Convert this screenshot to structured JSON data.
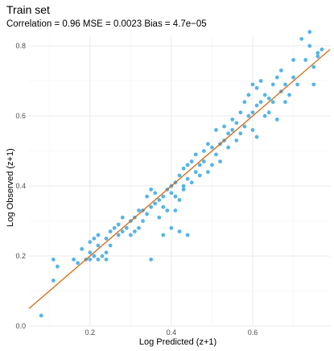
{
  "chart_data": {
    "type": "scatter",
    "title": "Train set",
    "subtitle": "Correlation =  0.96   MSE =   0.0023   Bias =   4.7e−05",
    "xlabel": "Log Predicted (z+1)",
    "ylabel": "Log Observed (z+1)",
    "xlim": [
      0.05,
      0.79
    ],
    "ylim": [
      0.0,
      0.83
    ],
    "x_ticks": [
      0.2,
      0.4,
      0.6
    ],
    "x_tick_labels": [
      "0.2",
      "0.4",
      "0.6"
    ],
    "y_ticks": [
      0.0,
      0.2,
      0.4,
      0.6,
      0.8
    ],
    "y_tick_labels": [
      "0.0",
      "0.2",
      "0.4",
      "0.6",
      "0.8"
    ],
    "grid": true,
    "point_color": "#56b4e9",
    "line_color": "#d55e00",
    "fit_line": {
      "slope": 1.0,
      "intercept": 0.0
    },
    "points": [
      [
        0.08,
        0.03
      ],
      [
        0.11,
        0.13
      ],
      [
        0.11,
        0.19
      ],
      [
        0.12,
        0.17
      ],
      [
        0.16,
        0.19
      ],
      [
        0.17,
        0.18
      ],
      [
        0.18,
        0.22
      ],
      [
        0.19,
        0.19
      ],
      [
        0.2,
        0.21
      ],
      [
        0.2,
        0.19
      ],
      [
        0.2,
        0.24
      ],
      [
        0.21,
        0.25
      ],
      [
        0.21,
        0.2
      ],
      [
        0.22,
        0.26
      ],
      [
        0.22,
        0.23
      ],
      [
        0.22,
        0.19
      ],
      [
        0.23,
        0.2
      ],
      [
        0.24,
        0.19
      ],
      [
        0.24,
        0.25
      ],
      [
        0.24,
        0.21
      ],
      [
        0.25,
        0.23
      ],
      [
        0.25,
        0.27
      ],
      [
        0.26,
        0.28
      ],
      [
        0.27,
        0.26
      ],
      [
        0.27,
        0.29
      ],
      [
        0.28,
        0.27
      ],
      [
        0.28,
        0.31
      ],
      [
        0.29,
        0.28
      ],
      [
        0.3,
        0.3
      ],
      [
        0.3,
        0.26
      ],
      [
        0.31,
        0.27
      ],
      [
        0.31,
        0.31
      ],
      [
        0.32,
        0.33
      ],
      [
        0.32,
        0.28
      ],
      [
        0.33,
        0.3
      ],
      [
        0.33,
        0.33
      ],
      [
        0.34,
        0.32
      ],
      [
        0.34,
        0.37
      ],
      [
        0.35,
        0.39
      ],
      [
        0.35,
        0.34
      ],
      [
        0.35,
        0.19
      ],
      [
        0.36,
        0.35
      ],
      [
        0.36,
        0.38
      ],
      [
        0.37,
        0.31
      ],
      [
        0.37,
        0.36
      ],
      [
        0.38,
        0.37
      ],
      [
        0.38,
        0.34
      ],
      [
        0.38,
        0.26
      ],
      [
        0.39,
        0.39
      ],
      [
        0.39,
        0.33
      ],
      [
        0.4,
        0.28
      ],
      [
        0.4,
        0.4
      ],
      [
        0.4,
        0.38
      ],
      [
        0.41,
        0.37
      ],
      [
        0.41,
        0.41
      ],
      [
        0.41,
        0.33
      ],
      [
        0.42,
        0.36
      ],
      [
        0.42,
        0.43
      ],
      [
        0.42,
        0.27
      ],
      [
        0.43,
        0.4
      ],
      [
        0.43,
        0.39
      ],
      [
        0.43,
        0.45
      ],
      [
        0.44,
        0.42
      ],
      [
        0.44,
        0.46
      ],
      [
        0.44,
        0.26
      ],
      [
        0.45,
        0.41
      ],
      [
        0.45,
        0.47
      ],
      [
        0.46,
        0.44
      ],
      [
        0.46,
        0.49
      ],
      [
        0.47,
        0.46
      ],
      [
        0.47,
        0.43
      ],
      [
        0.48,
        0.47
      ],
      [
        0.48,
        0.5
      ],
      [
        0.49,
        0.44
      ],
      [
        0.49,
        0.52
      ],
      [
        0.5,
        0.51
      ],
      [
        0.5,
        0.46
      ],
      [
        0.51,
        0.56
      ],
      [
        0.51,
        0.49
      ],
      [
        0.52,
        0.52
      ],
      [
        0.52,
        0.47
      ],
      [
        0.53,
        0.53
      ],
      [
        0.53,
        0.57
      ],
      [
        0.54,
        0.51
      ],
      [
        0.54,
        0.55
      ],
      [
        0.55,
        0.56
      ],
      [
        0.55,
        0.59
      ],
      [
        0.56,
        0.53
      ],
      [
        0.56,
        0.58
      ],
      [
        0.57,
        0.61
      ],
      [
        0.57,
        0.55
      ],
      [
        0.58,
        0.57
      ],
      [
        0.58,
        0.64
      ],
      [
        0.59,
        0.6
      ],
      [
        0.59,
        0.66
      ],
      [
        0.6,
        0.56
      ],
      [
        0.6,
        0.61
      ],
      [
        0.6,
        0.69
      ],
      [
        0.61,
        0.63
      ],
      [
        0.61,
        0.68
      ],
      [
        0.61,
        0.54
      ],
      [
        0.62,
        0.64
      ],
      [
        0.62,
        0.7
      ],
      [
        0.63,
        0.6
      ],
      [
        0.63,
        0.66
      ],
      [
        0.64,
        0.61
      ],
      [
        0.64,
        0.65
      ],
      [
        0.65,
        0.69
      ],
      [
        0.65,
        0.64
      ],
      [
        0.66,
        0.71
      ],
      [
        0.66,
        0.59
      ],
      [
        0.67,
        0.67
      ],
      [
        0.67,
        0.73
      ],
      [
        0.68,
        0.69
      ],
      [
        0.68,
        0.64
      ],
      [
        0.69,
        0.66
      ],
      [
        0.7,
        0.71
      ],
      [
        0.7,
        0.76
      ],
      [
        0.71,
        0.69
      ],
      [
        0.72,
        0.82
      ],
      [
        0.73,
        0.76
      ],
      [
        0.74,
        0.8
      ],
      [
        0.74,
        0.84
      ],
      [
        0.75,
        0.74
      ],
      [
        0.75,
        0.69
      ],
      [
        0.76,
        0.78
      ],
      [
        0.76,
        0.77
      ],
      [
        0.77,
        0.79
      ]
    ]
  }
}
